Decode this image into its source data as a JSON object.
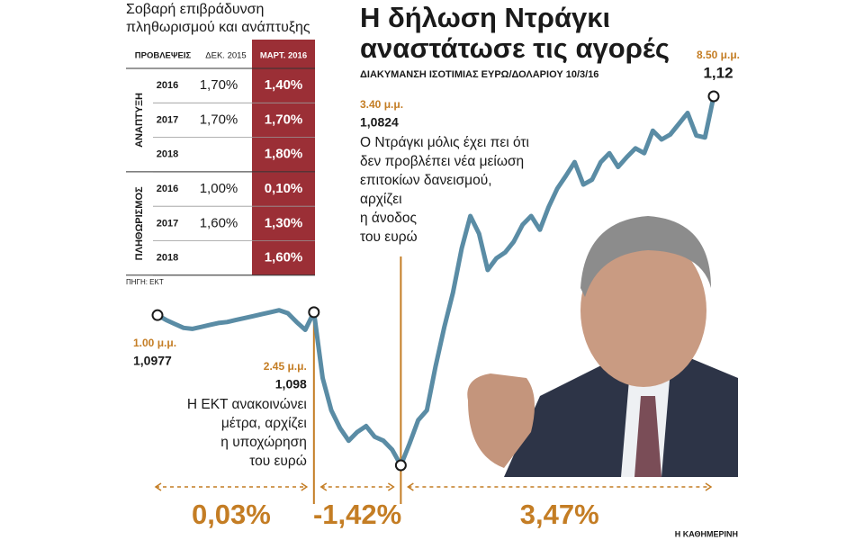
{
  "chart_data": {
    "type": "line",
    "title": [
      "Η δήλωση Ντράγκι",
      "αναστάτωσε τις αγορές"
    ],
    "subtitle": "ΔΙΑΚΥΜΑΝΣΗ ΙΣΟΤΙΜΙΑΣ ΕΥΡΩ/ΔΟΛΑΡΙΟΥ 10/3/16",
    "color": "#5a8ca5",
    "values": [
      1.0977,
      1.0972,
      1.0968,
      1.0964,
      1.0963,
      1.0965,
      1.0967,
      1.0969,
      1.097,
      1.0972,
      1.0974,
      1.0976,
      1.0978,
      1.098,
      1.0982,
      1.0979,
      1.097,
      1.0962,
      1.098,
      1.0913,
      1.088,
      1.0862,
      1.0849,
      1.0858,
      1.0864,
      1.0853,
      1.0849,
      1.084,
      1.0824,
      1.0846,
      1.087,
      1.088,
      1.0925,
      1.0965,
      1.1,
      1.1045,
      1.1078,
      1.106,
      1.1023,
      1.1035,
      1.1041,
      1.1052,
      1.1069,
      1.1078,
      1.1064,
      1.1087,
      1.1106,
      1.1119,
      1.1133,
      1.111,
      1.1115,
      1.1133,
      1.1142,
      1.1128,
      1.1138,
      1.1147,
      1.1142,
      1.1165,
      1.1156,
      1.1161,
      1.1172,
      1.1183,
      1.116,
      1.1158,
      1.12
    ],
    "annotations": [
      {
        "time": "1.00 μ.μ.",
        "value": "1,0977",
        "text": []
      },
      {
        "time": "2.45 μ.μ.",
        "value": "1,098",
        "text": [
          "Η ΕΚΤ ανακοινώνει",
          "μέτρα, αρχίζει",
          "η υποχώρηση",
          "του ευρώ"
        ]
      },
      {
        "time": "3.40 μ.μ.",
        "value": "1,0824",
        "text": [
          "Ο Ντράγκι μόλις έχει πει ότι",
          "δεν προβλέπει νέα μείωση",
          "επιτοκίων δανεισμού,",
          "αρχίζει",
          "η άνοδος",
          "του ευρώ"
        ]
      },
      {
        "time": "8.50 μ.μ.",
        "value": "1,12",
        "text": []
      }
    ],
    "changes": [
      "0,03%",
      "-1,42%",
      "3,47%"
    ]
  },
  "table": {
    "title": [
      "Σοβαρή επιβράδυνση",
      "πληθωρισμού και ανάπτυξης"
    ],
    "header": [
      "ΠΡΟΒΛΕΨΕΙΣ",
      "ΔΕΚ. 2015",
      "ΜΑΡΤ. 2016"
    ],
    "groups": [
      {
        "name": "ΑΝΑΠΤΥΞΗ",
        "rows": [
          [
            "2016",
            "1,70%",
            "1,40%"
          ],
          [
            "2017",
            "1,70%",
            "1,70%"
          ],
          [
            "2018",
            "",
            "1,80%"
          ]
        ]
      },
      {
        "name": "ΠΛΗΘΩΡΙΣΜΟΣ",
        "rows": [
          [
            "2016",
            "1,00%",
            "0,10%"
          ],
          [
            "2017",
            "1,60%",
            "1,30%"
          ],
          [
            "2018",
            "",
            "1,60%"
          ]
        ]
      }
    ],
    "source": "ΠΗΓΗ: ΕΚΤ"
  },
  "credit": "Η ΚΑΘΗΜΕΡΙΝΗ"
}
